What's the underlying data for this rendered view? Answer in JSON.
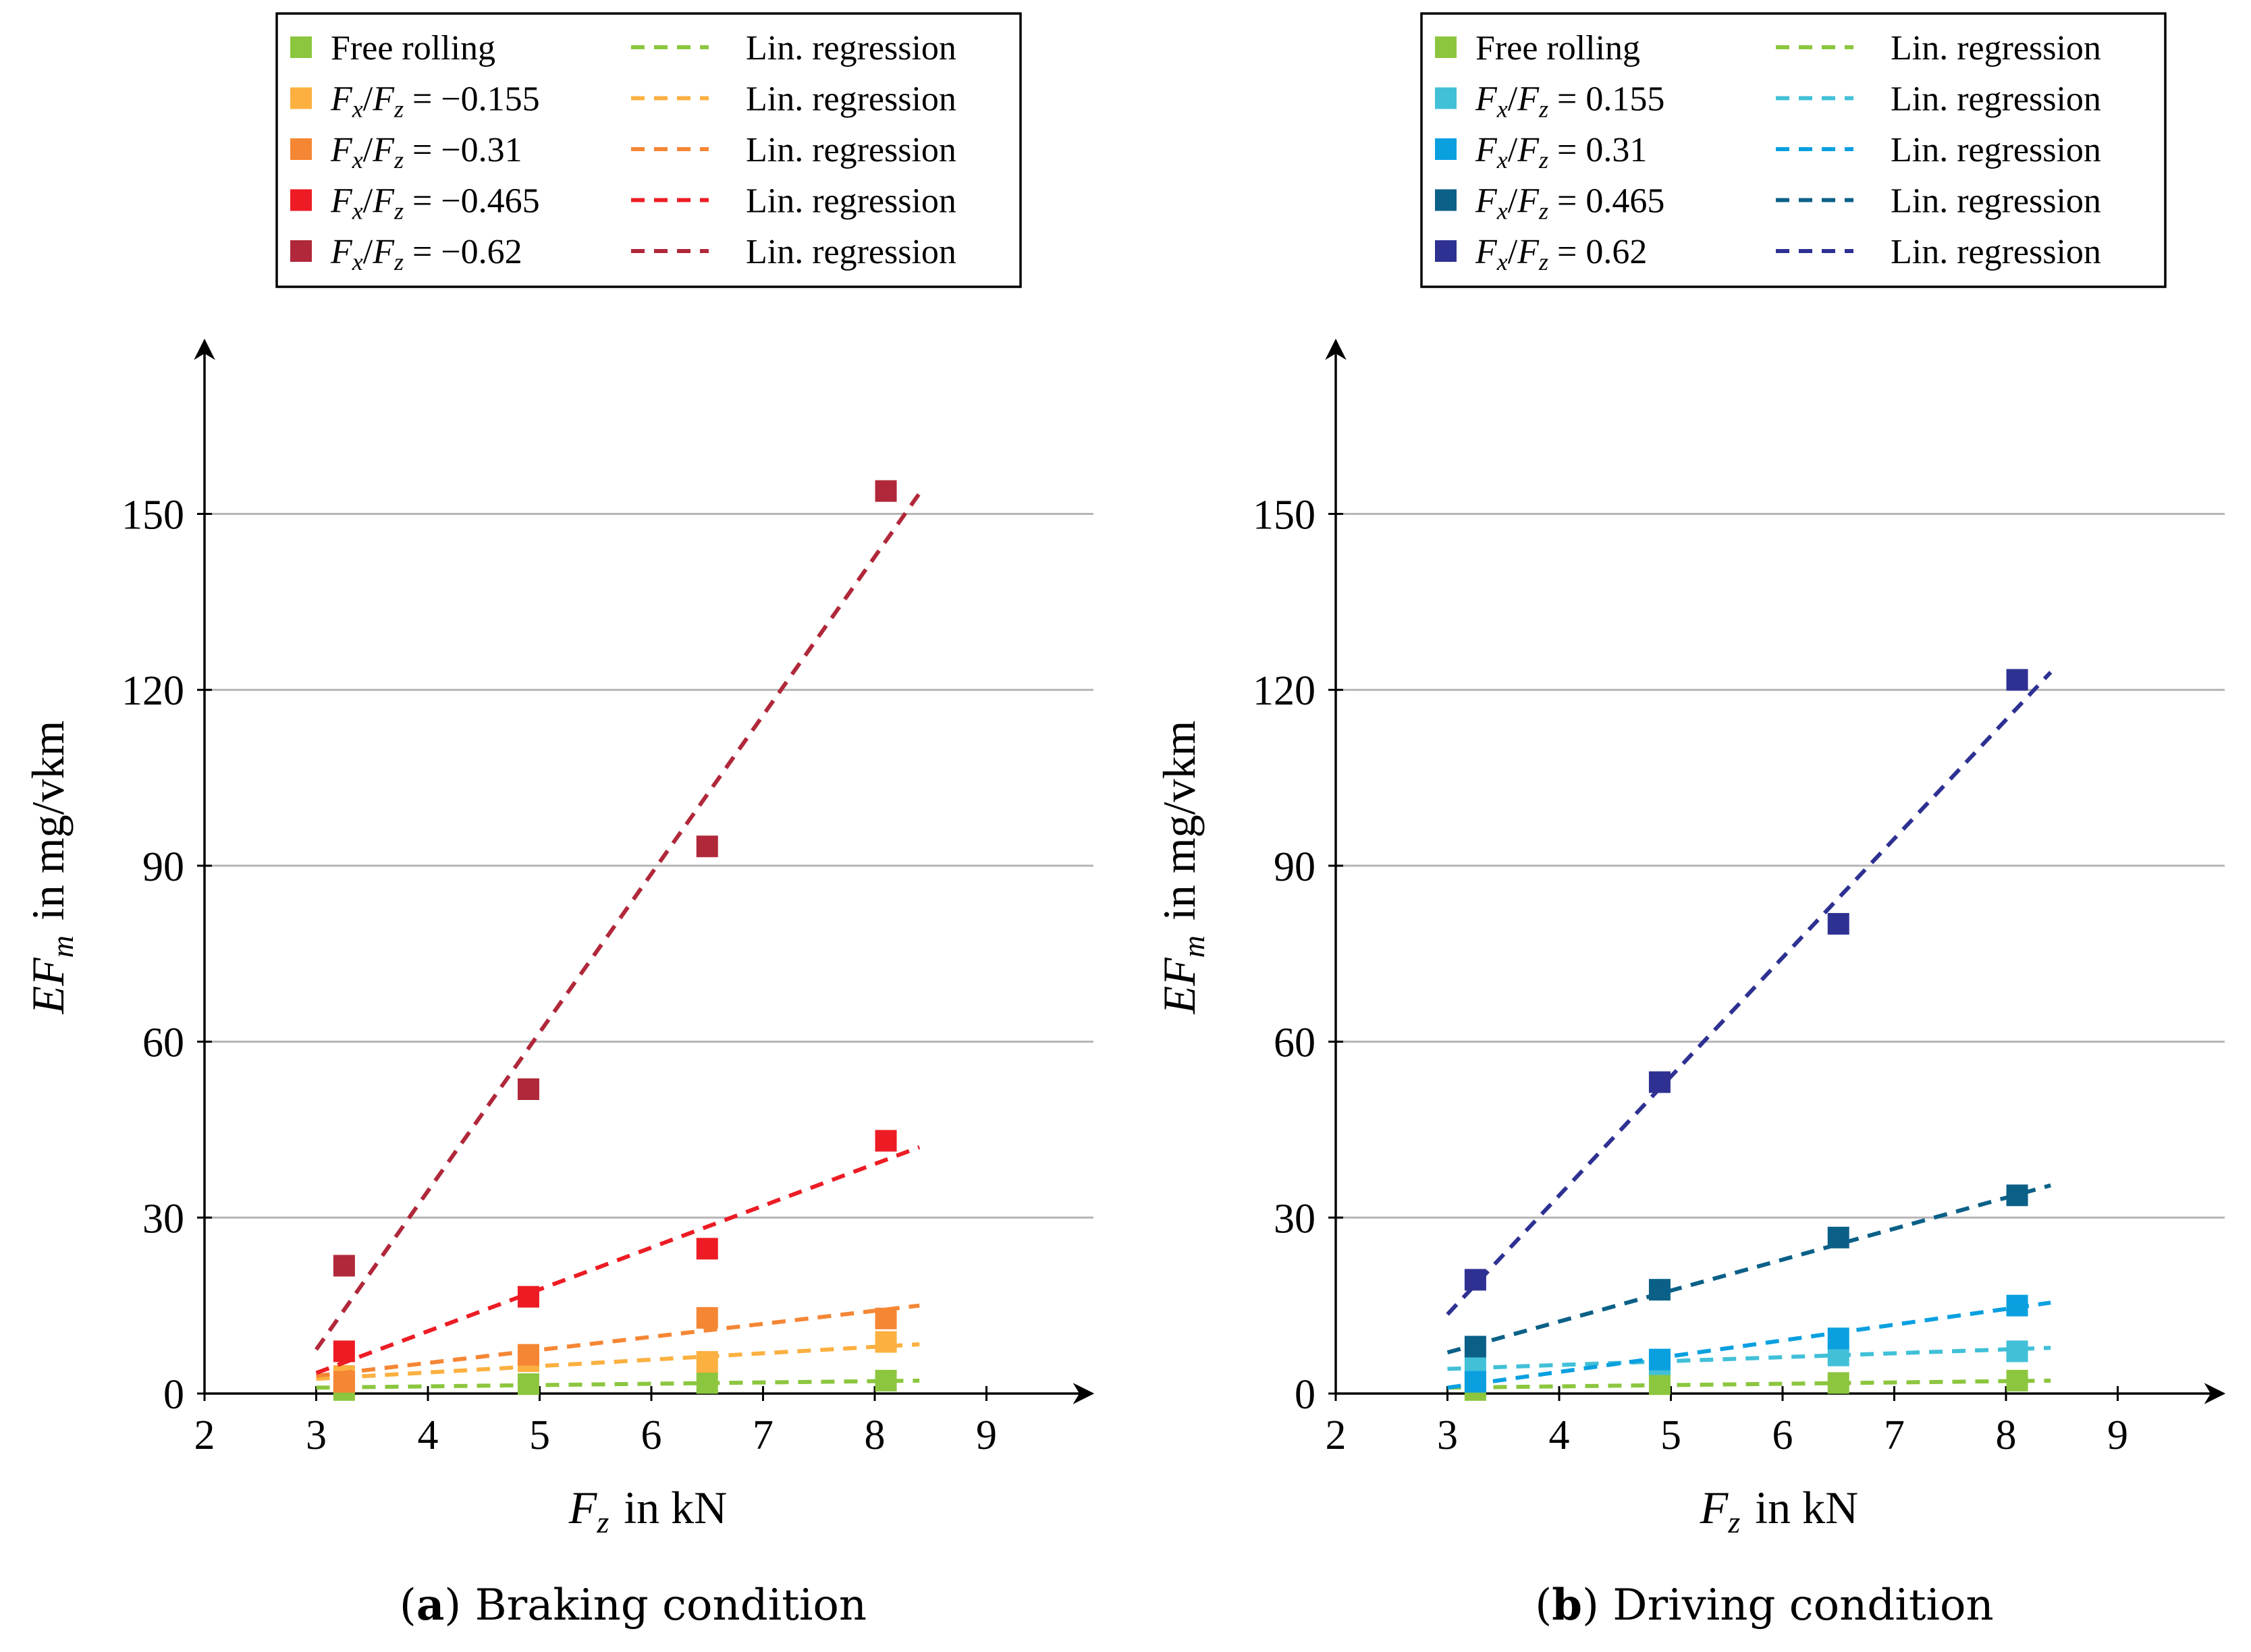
{
  "chart_data": [
    {
      "type": "scatter",
      "caption_letter": "a",
      "caption_text": "Braking condition",
      "xlabel_var": "F",
      "xlabel_sub": "z",
      "xlabel_unit": "in kN",
      "ylabel_var": "EF",
      "ylabel_sub": "m",
      "ylabel_unit": "in mg/vkm",
      "xlim": [
        2,
        10
      ],
      "ylim": [
        0,
        175
      ],
      "xticks": [
        "2",
        "3",
        "4",
        "5",
        "6",
        "7",
        "8",
        "9"
      ],
      "yticks": [
        "0",
        "30",
        "60",
        "90",
        "120",
        "150"
      ],
      "grid_y": true,
      "legend_position": "top",
      "regression_label": "Lin. regression",
      "series": [
        {
          "name": "Free rolling",
          "prefix": "",
          "value": "",
          "color": "#8cc63f",
          "x": [
            3.25,
            4.9,
            6.5,
            8.1
          ],
          "y": [
            0.6,
            1.6,
            1.8,
            2.2
          ],
          "reg": [
            [
              3,
              1.0
            ],
            [
              8.4,
              2.2
            ]
          ]
        },
        {
          "name": "",
          "prefix": "F_x/F_z = ",
          "value": "−0.155",
          "color": "#fbb040",
          "x": [
            3.25,
            4.9,
            6.5,
            8.1
          ],
          "y": [
            3.0,
            5.5,
            5.4,
            8.8
          ],
          "reg": [
            [
              3,
              2.5
            ],
            [
              8.4,
              8.4
            ]
          ]
        },
        {
          "name": "",
          "prefix": "F_x/F_z = ",
          "value": "−0.31",
          "color": "#f58634",
          "x": [
            3.25,
            4.9,
            6.5,
            8.1
          ],
          "y": [
            2.0,
            6.6,
            12.9,
            12.8
          ],
          "reg": [
            [
              3,
              3.0
            ],
            [
              8.4,
              15.0
            ]
          ]
        },
        {
          "name": "",
          "prefix": "F_x/F_z = ",
          "value": "−0.465",
          "color": "#ed1c24",
          "x": [
            3.25,
            4.9,
            6.5,
            8.1
          ],
          "y": [
            7.2,
            16.5,
            24.7,
            43.1
          ],
          "reg": [
            [
              3,
              3.5
            ],
            [
              8.4,
              42.0
            ]
          ]
        },
        {
          "name": "",
          "prefix": "F_x/F_z = ",
          "value": "−0.62",
          "color": "#b0283a",
          "x": [
            3.25,
            4.9,
            6.5,
            8.1
          ],
          "y": [
            21.8,
            51.9,
            93.3,
            153.9
          ],
          "reg": [
            [
              3,
              7.5
            ],
            [
              8.4,
              153.5
            ]
          ]
        }
      ]
    },
    {
      "type": "scatter",
      "caption_letter": "b",
      "caption_text": "Driving condition",
      "xlabel_var": "F",
      "xlabel_sub": "z",
      "xlabel_unit": "in kN",
      "ylabel_var": "EF",
      "ylabel_sub": "m",
      "ylabel_unit": "in mg/vkm",
      "xlim": [
        2,
        10
      ],
      "ylim": [
        0,
        175
      ],
      "xticks": [
        "2",
        "3",
        "4",
        "5",
        "6",
        "7",
        "8",
        "9"
      ],
      "yticks": [
        "0",
        "30",
        "60",
        "90",
        "120",
        "150"
      ],
      "grid_y": true,
      "legend_position": "top",
      "regression_label": "Lin. regression",
      "series": [
        {
          "name": "Free rolling",
          "prefix": "",
          "value": "",
          "color": "#8cc63f",
          "x": [
            3.25,
            4.9,
            6.5,
            8.1
          ],
          "y": [
            0.6,
            1.6,
            1.8,
            2.2
          ],
          "reg": [
            [
              3,
              1.0
            ],
            [
              8.4,
              2.2
            ]
          ]
        },
        {
          "name": "",
          "prefix": "F_x/F_z = ",
          "value": "0.155",
          "color": "#41c0d8",
          "x": [
            3.25,
            4.9,
            6.5,
            8.1
          ],
          "y": [
            4.5,
            5.0,
            6.5,
            7.2
          ],
          "reg": [
            [
              3,
              4.2
            ],
            [
              8.4,
              7.8
            ]
          ]
        },
        {
          "name": "",
          "prefix": "F_x/F_z = ",
          "value": "0.31",
          "color": "#0aa0e0",
          "x": [
            3.25,
            4.9,
            6.5,
            8.1
          ],
          "y": [
            2.0,
            5.8,
            9.4,
            15.0
          ],
          "reg": [
            [
              3,
              1.0
            ],
            [
              8.4,
              15.5
            ]
          ]
        },
        {
          "name": "",
          "prefix": "F_x/F_z = ",
          "value": "0.465",
          "color": "#0b6087",
          "x": [
            3.25,
            4.9,
            6.5,
            8.1
          ],
          "y": [
            8.0,
            17.7,
            26.6,
            33.8
          ],
          "reg": [
            [
              3,
              7.0
            ],
            [
              8.4,
              35.5
            ]
          ]
        },
        {
          "name": "",
          "prefix": "F_x/F_z = ",
          "value": "0.62",
          "color": "#2e3192",
          "x": [
            3.25,
            4.9,
            6.5,
            8.1
          ],
          "y": [
            19.4,
            53.1,
            80.1,
            121.7
          ],
          "reg": [
            [
              3,
              13.5
            ],
            [
              8.4,
              123.0
            ]
          ]
        }
      ]
    }
  ]
}
